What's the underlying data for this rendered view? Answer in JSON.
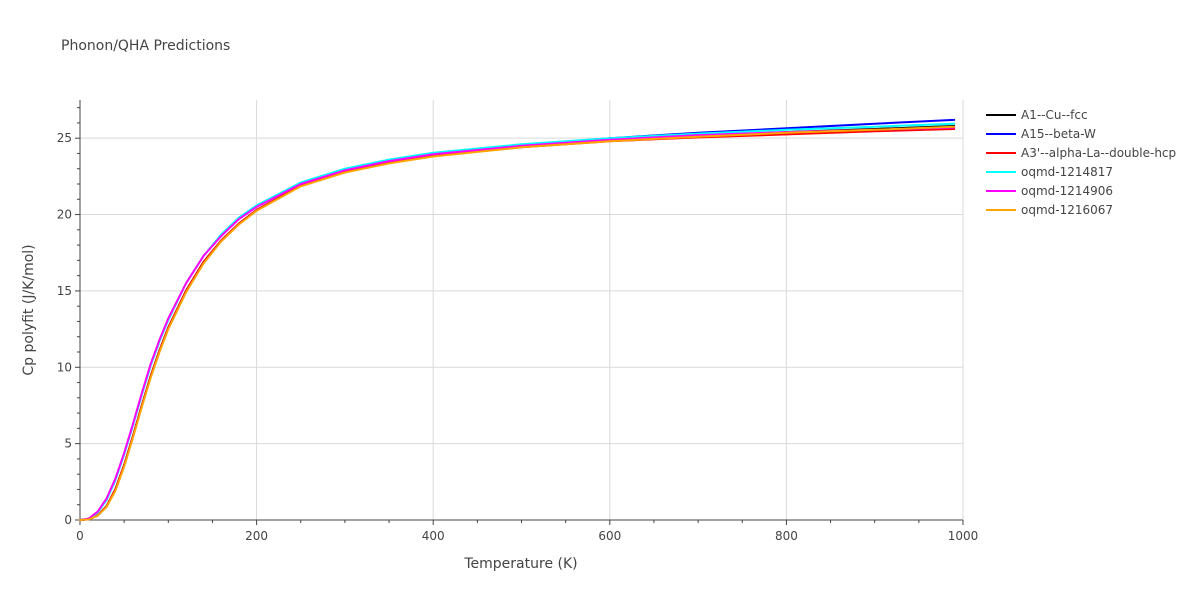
{
  "chart_data": {
    "type": "line",
    "title": "Phonon/QHA Predictions",
    "xlabel": "Temperature (K)",
    "ylabel": "Cp polyfit (J/K/mol)",
    "xlim": [
      0,
      1000
    ],
    "ylim": [
      0,
      27.5
    ],
    "xticks": [
      0,
      200,
      400,
      600,
      800,
      1000
    ],
    "yticks": [
      0,
      5,
      10,
      15,
      20,
      25
    ],
    "grid": true,
    "legend_position": "right",
    "series": [
      {
        "name": "A1--Cu--fcc",
        "color": "#000000",
        "points": [
          [
            0,
            0
          ],
          [
            10,
            0.05
          ],
          [
            20,
            0.3
          ],
          [
            30,
            0.9
          ],
          [
            40,
            2.0
          ],
          [
            50,
            3.6
          ],
          [
            60,
            5.5
          ],
          [
            70,
            7.5
          ],
          [
            80,
            9.4
          ],
          [
            90,
            11.1
          ],
          [
            100,
            12.6
          ],
          [
            120,
            15.0
          ],
          [
            140,
            16.9
          ],
          [
            160,
            18.3
          ],
          [
            180,
            19.4
          ],
          [
            200,
            20.3
          ],
          [
            250,
            21.9
          ],
          [
            300,
            22.8
          ],
          [
            350,
            23.4
          ],
          [
            400,
            23.85
          ],
          [
            500,
            24.45
          ],
          [
            600,
            24.85
          ],
          [
            700,
            25.15
          ],
          [
            800,
            25.4
          ],
          [
            900,
            25.6
          ],
          [
            990,
            25.8
          ]
        ]
      },
      {
        "name": "A15--beta-W",
        "color": "#0000ff",
        "points": [
          [
            0,
            0
          ],
          [
            10,
            0.05
          ],
          [
            20,
            0.3
          ],
          [
            30,
            0.9
          ],
          [
            40,
            2.0
          ],
          [
            50,
            3.6
          ],
          [
            60,
            5.5
          ],
          [
            70,
            7.5
          ],
          [
            80,
            9.4
          ],
          [
            90,
            11.1
          ],
          [
            100,
            12.6
          ],
          [
            120,
            15.0
          ],
          [
            140,
            16.9
          ],
          [
            160,
            18.3
          ],
          [
            180,
            19.4
          ],
          [
            200,
            20.3
          ],
          [
            250,
            21.9
          ],
          [
            300,
            22.8
          ],
          [
            350,
            23.45
          ],
          [
            400,
            23.9
          ],
          [
            500,
            24.55
          ],
          [
            600,
            25.0
          ],
          [
            700,
            25.35
          ],
          [
            800,
            25.65
          ],
          [
            900,
            25.95
          ],
          [
            990,
            26.2
          ]
        ]
      },
      {
        "name": "A3'--alpha-La--double-hcp",
        "color": "#ff0000",
        "points": [
          [
            0,
            0
          ],
          [
            10,
            0.05
          ],
          [
            20,
            0.3
          ],
          [
            30,
            0.9
          ],
          [
            40,
            2.0
          ],
          [
            50,
            3.6
          ],
          [
            60,
            5.5
          ],
          [
            70,
            7.5
          ],
          [
            80,
            9.4
          ],
          [
            90,
            11.1
          ],
          [
            100,
            12.6
          ],
          [
            120,
            15.0
          ],
          [
            140,
            16.9
          ],
          [
            160,
            18.3
          ],
          [
            180,
            19.4
          ],
          [
            200,
            20.3
          ],
          [
            250,
            21.9
          ],
          [
            300,
            22.8
          ],
          [
            350,
            23.4
          ],
          [
            400,
            23.85
          ],
          [
            500,
            24.4
          ],
          [
            600,
            24.8
          ],
          [
            700,
            25.05
          ],
          [
            800,
            25.25
          ],
          [
            900,
            25.45
          ],
          [
            990,
            25.6
          ]
        ]
      },
      {
        "name": "oqmd-1214817",
        "color": "#00ffff",
        "points": [
          [
            0,
            0
          ],
          [
            10,
            0.08
          ],
          [
            20,
            0.5
          ],
          [
            30,
            1.3
          ],
          [
            40,
            2.6
          ],
          [
            50,
            4.3
          ],
          [
            60,
            6.2
          ],
          [
            70,
            8.2
          ],
          [
            80,
            10.1
          ],
          [
            90,
            11.7
          ],
          [
            100,
            13.1
          ],
          [
            120,
            15.5
          ],
          [
            140,
            17.3
          ],
          [
            160,
            18.7
          ],
          [
            180,
            19.8
          ],
          [
            200,
            20.6
          ],
          [
            250,
            22.1
          ],
          [
            300,
            23.0
          ],
          [
            350,
            23.6
          ],
          [
            400,
            24.05
          ],
          [
            500,
            24.6
          ],
          [
            600,
            25.0
          ],
          [
            700,
            25.3
          ],
          [
            800,
            25.55
          ],
          [
            900,
            25.75
          ],
          [
            990,
            25.95
          ]
        ]
      },
      {
        "name": "oqmd-1214906",
        "color": "#ff00ff",
        "points": [
          [
            0,
            0
          ],
          [
            10,
            0.1
          ],
          [
            20,
            0.55
          ],
          [
            30,
            1.4
          ],
          [
            40,
            2.7
          ],
          [
            50,
            4.4
          ],
          [
            60,
            6.3
          ],
          [
            70,
            8.3
          ],
          [
            80,
            10.2
          ],
          [
            90,
            11.8
          ],
          [
            100,
            13.2
          ],
          [
            120,
            15.5
          ],
          [
            140,
            17.3
          ],
          [
            160,
            18.6
          ],
          [
            180,
            19.7
          ],
          [
            200,
            20.5
          ],
          [
            250,
            22.0
          ],
          [
            300,
            22.9
          ],
          [
            350,
            23.5
          ],
          [
            400,
            23.95
          ],
          [
            500,
            24.5
          ],
          [
            600,
            24.9
          ],
          [
            700,
            25.2
          ],
          [
            800,
            25.4
          ],
          [
            900,
            25.55
          ],
          [
            990,
            25.7
          ]
        ]
      },
      {
        "name": "oqmd-1216067",
        "color": "#ffa500",
        "points": [
          [
            0,
            0
          ],
          [
            10,
            0.04
          ],
          [
            20,
            0.28
          ],
          [
            30,
            0.85
          ],
          [
            40,
            1.9
          ],
          [
            50,
            3.5
          ],
          [
            60,
            5.4
          ],
          [
            70,
            7.4
          ],
          [
            80,
            9.3
          ],
          [
            90,
            11.0
          ],
          [
            100,
            12.5
          ],
          [
            120,
            14.9
          ],
          [
            140,
            16.8
          ],
          [
            160,
            18.25
          ],
          [
            180,
            19.35
          ],
          [
            200,
            20.25
          ],
          [
            250,
            21.85
          ],
          [
            300,
            22.75
          ],
          [
            350,
            23.35
          ],
          [
            400,
            23.8
          ],
          [
            500,
            24.4
          ],
          [
            600,
            24.8
          ],
          [
            700,
            25.1
          ],
          [
            800,
            25.35
          ],
          [
            900,
            25.55
          ],
          [
            990,
            25.75
          ]
        ]
      }
    ]
  }
}
